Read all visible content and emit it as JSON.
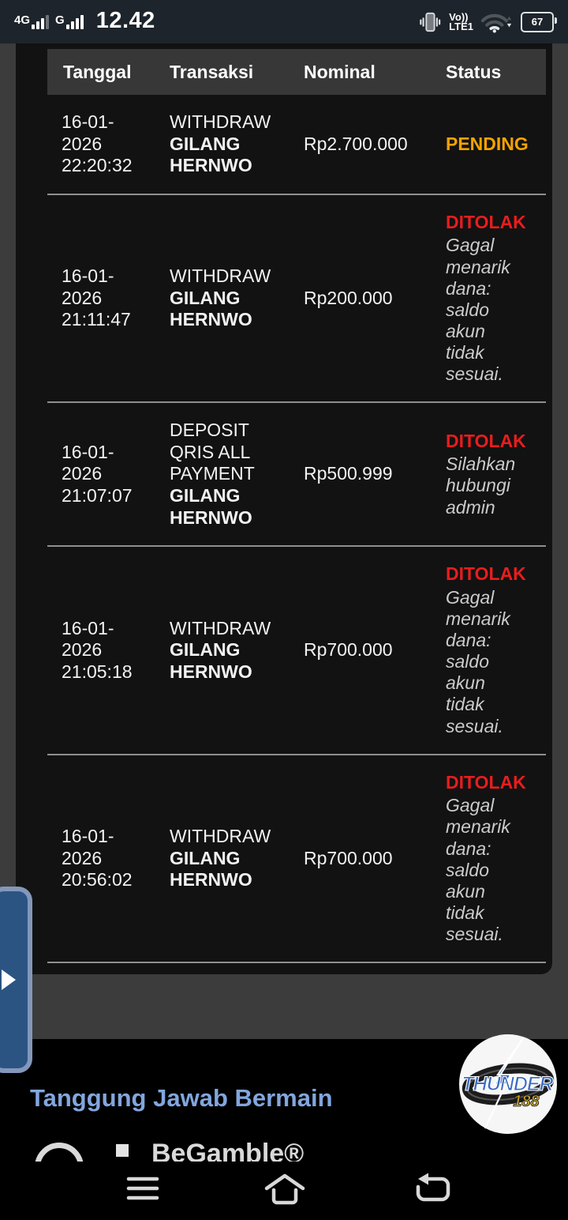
{
  "status_bar": {
    "network1": "4G",
    "network2": "G",
    "time": "12.42",
    "volte_line1": "Vo))",
    "volte_line2": "LTE1",
    "battery_percent": "67"
  },
  "table": {
    "headers": [
      "Tanggal",
      "Transaksi",
      "Nominal",
      "Status"
    ],
    "rows": [
      {
        "date": "16-01-2026 22:20:32",
        "type": "WITHDRAW",
        "name": "GILANG HERNWO",
        "amount": "Rp2.700.000",
        "status": "PENDING",
        "status_color": "#f5a300",
        "note": ""
      },
      {
        "date": "16-01-2026 21:11:47",
        "type": "WITHDRAW",
        "name": "GILANG HERNWO",
        "amount": "Rp200.000",
        "status": "DITOLAK",
        "status_color": "#e81d1d",
        "note": "Gagal menarik dana: saldo akun tidak sesuai."
      },
      {
        "date": "16-01-2026 21:07:07",
        "type": "DEPOSIT QRIS ALL PAYMENT",
        "name": "GILANG HERNWO",
        "amount": "Rp500.999",
        "status": "DITOLAK",
        "status_color": "#e81d1d",
        "note": "Silahkan hubungi admin"
      },
      {
        "date": "16-01-2026 21:05:18",
        "type": "WITHDRAW",
        "name": "GILANG HERNWO",
        "amount": "Rp700.000",
        "status": "DITOLAK",
        "status_color": "#e81d1d",
        "note": "Gagal menarik dana: saldo akun tidak sesuai."
      },
      {
        "date": "16-01-2026 20:56:02",
        "type": "WITHDRAW",
        "name": "GILANG HERNWO",
        "amount": "Rp700.000",
        "status": "DITOLAK",
        "status_color": "#e81d1d",
        "note": "Gagal menarik dana: saldo akun tidak sesuai."
      }
    ]
  },
  "footer": {
    "responsible_text": "Tanggung Jawab Bermain",
    "logo_text": "THUNDER",
    "logo_number": "188",
    "begamble_text": "BeGamble®"
  },
  "colors": {
    "status_bar_bg": "#1e242b",
    "page_bg": "#3c3c3c",
    "card_bg": "#121212",
    "header_bg": "#373737",
    "pending": "#f5a300",
    "rejected": "#e81d1d",
    "note_gray": "#cbcbcb",
    "handle_blue": "#2b5483",
    "responsible_blue": "#82a6de"
  }
}
